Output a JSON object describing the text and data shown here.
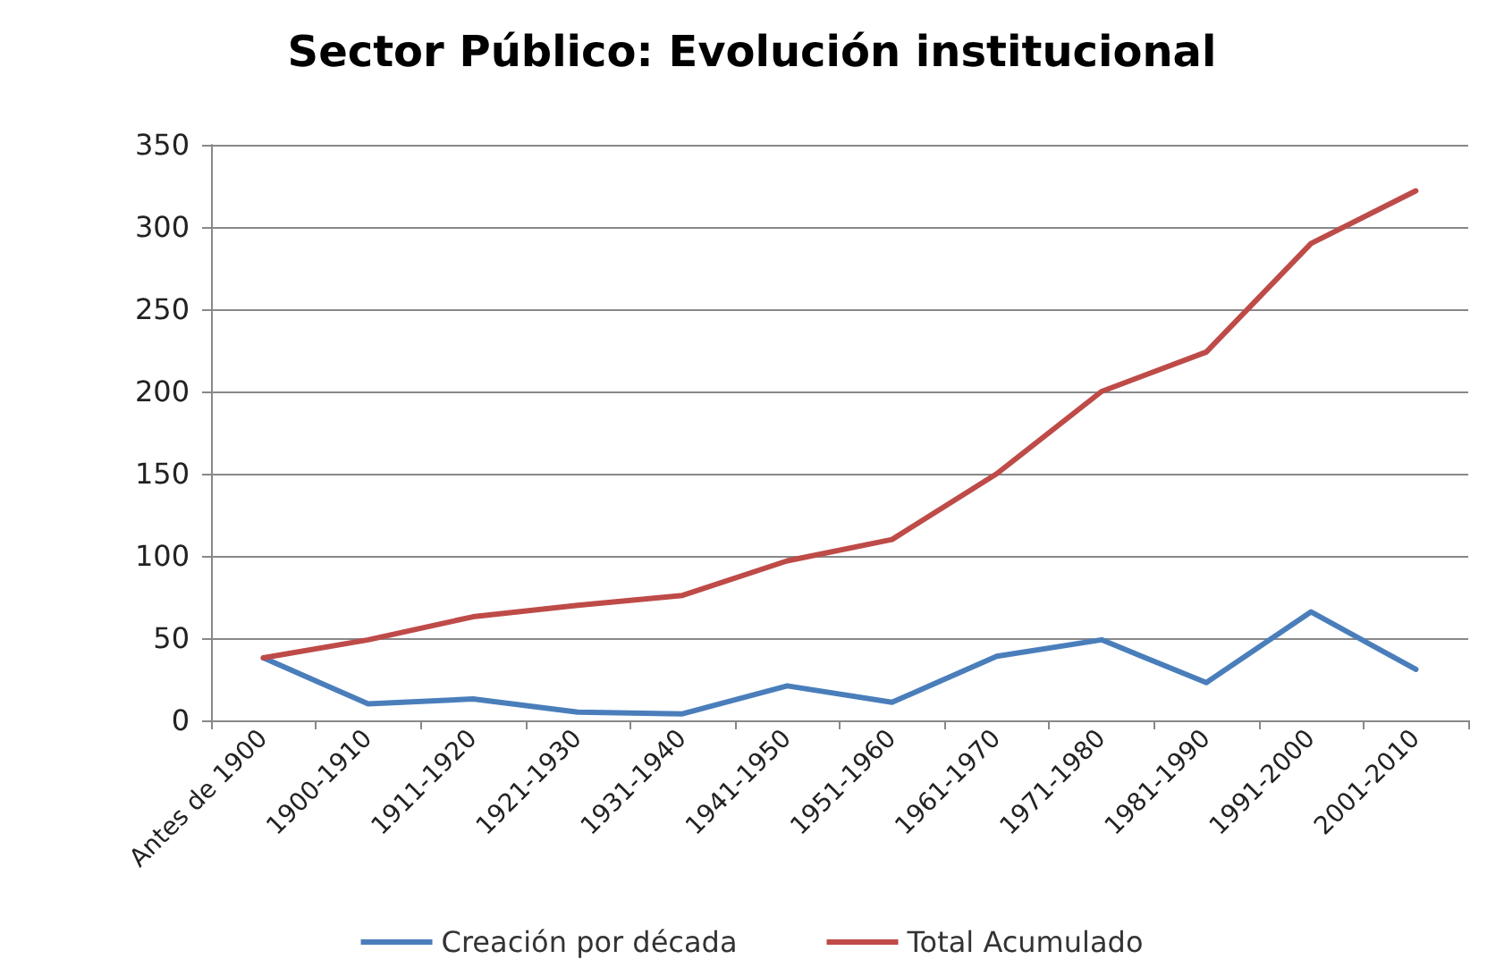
{
  "chart_data": {
    "type": "line",
    "title": "Sector Público: Evolución institucional",
    "categories": [
      "Antes de 1900",
      "1900-1910",
      "1911-1920",
      "1921-1930",
      "1931-1940",
      "1941-1950",
      "1951-1960",
      "1961-1970",
      "1971-1980",
      "1981-1990",
      "1991-2000",
      "2001-2010"
    ],
    "series": [
      {
        "name": "Creación por década",
        "color": "#4a7ebb",
        "values": [
          38,
          10,
          13,
          5,
          4,
          21,
          11,
          39,
          49,
          23,
          66,
          31
        ]
      },
      {
        "name": "Total Acumulado",
        "color": "#be4b48",
        "values": [
          38,
          49,
          63,
          70,
          76,
          97,
          110,
          150,
          200,
          224,
          290,
          322
        ]
      }
    ],
    "ylim": [
      0,
      350
    ],
    "yticks": [
      0,
      50,
      100,
      150,
      200,
      250,
      300,
      350
    ],
    "grid": "y",
    "legend": "bottom",
    "marker": "none"
  }
}
